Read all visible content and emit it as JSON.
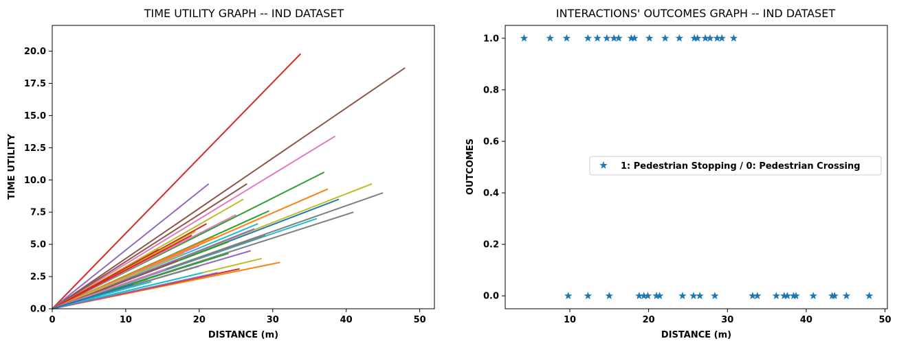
{
  "chart_data": [
    {
      "type": "line",
      "title": "TIME UTILITY GRAPH  -- IND DATASET",
      "xlabel": "DISTANCE (m)",
      "ylabel": "TIME UTILITY",
      "xlim": [
        0,
        52
      ],
      "ylim": [
        0,
        22
      ],
      "xticks": [
        0,
        10,
        20,
        30,
        40,
        50
      ],
      "yticks": [
        0.0,
        2.5,
        5.0,
        7.5,
        10.0,
        12.5,
        15.0,
        17.5,
        20.0
      ],
      "ytick_labels": [
        "0.0",
        "2.5",
        "5.0",
        "7.5",
        "10.0",
        "12.5",
        "15.0",
        "17.5",
        "20.0"
      ],
      "grid": false,
      "series": [
        {
          "color": "#d62728",
          "x": [
            0,
            33.8
          ],
          "y": [
            0,
            19.8
          ]
        },
        {
          "color": "#8c564b",
          "x": [
            0,
            48.0
          ],
          "y": [
            0,
            18.7
          ]
        },
        {
          "color": "#e377c2",
          "x": [
            0,
            38.5
          ],
          "y": [
            0,
            13.4
          ]
        },
        {
          "color": "#2ca02c",
          "x": [
            0,
            37.0
          ],
          "y": [
            0,
            10.6
          ]
        },
        {
          "color": "#9467bd",
          "x": [
            0,
            21.3
          ],
          "y": [
            0,
            9.7
          ]
        },
        {
          "color": "#8c564b",
          "x": [
            0,
            26.5
          ],
          "y": [
            0,
            9.7
          ]
        },
        {
          "color": "#bcbd22",
          "x": [
            0,
            43.5
          ],
          "y": [
            0,
            9.7
          ]
        },
        {
          "color": "#7f7f7f",
          "x": [
            0,
            45.0
          ],
          "y": [
            0,
            9.0
          ]
        },
        {
          "color": "#ff7f0e",
          "x": [
            0,
            37.5
          ],
          "y": [
            0,
            9.3
          ]
        },
        {
          "color": "#bcbd22",
          "x": [
            0,
            26.0
          ],
          "y": [
            0,
            8.5
          ]
        },
        {
          "color": "#1f77b4",
          "x": [
            0,
            39.0
          ],
          "y": [
            0,
            8.5
          ]
        },
        {
          "color": "#7f7f7f",
          "x": [
            0,
            41.0
          ],
          "y": [
            0,
            7.5
          ]
        },
        {
          "color": "#2ca02c",
          "x": [
            0,
            29.5
          ],
          "y": [
            0,
            7.6
          ]
        },
        {
          "color": "#e377c2",
          "x": [
            0,
            25.0
          ],
          "y": [
            0,
            7.3
          ]
        },
        {
          "color": "#17becf",
          "x": [
            0,
            36.0
          ],
          "y": [
            0,
            7.0
          ]
        },
        {
          "color": "#d62728",
          "x": [
            0,
            21.0
          ],
          "y": [
            0,
            6.6
          ]
        },
        {
          "color": "#17becf",
          "x": [
            0,
            28.0
          ],
          "y": [
            0,
            6.6
          ]
        },
        {
          "color": "#bcbd22",
          "x": [
            0,
            19.5
          ],
          "y": [
            0,
            6.0
          ]
        },
        {
          "color": "#9467bd",
          "x": [
            0,
            27.5
          ],
          "y": [
            0,
            6.2
          ]
        },
        {
          "color": "#d62728",
          "x": [
            0,
            19.0
          ],
          "y": [
            0,
            5.7
          ]
        },
        {
          "color": "#ff7f0e",
          "x": [
            0,
            22.0
          ],
          "y": [
            0,
            5.6
          ]
        },
        {
          "color": "#7f7f7f",
          "x": [
            0,
            29.0
          ],
          "y": [
            0,
            5.7
          ]
        },
        {
          "color": "#2ca02c",
          "x": [
            0,
            24.0
          ],
          "y": [
            0,
            5.2
          ]
        },
        {
          "color": "#e377c2",
          "x": [
            0,
            20.0
          ],
          "y": [
            0,
            4.9
          ]
        },
        {
          "color": "#d62728",
          "x": [
            0,
            14.5
          ],
          "y": [
            0,
            4.6
          ]
        },
        {
          "color": "#9467bd",
          "x": [
            0,
            27.0
          ],
          "y": [
            0,
            4.5
          ]
        },
        {
          "color": "#bcbd22",
          "x": [
            0,
            18.0
          ],
          "y": [
            0,
            4.3
          ]
        },
        {
          "color": "#2ca02c",
          "x": [
            0,
            24.0
          ],
          "y": [
            0,
            4.3
          ]
        },
        {
          "color": "#bcbd22",
          "x": [
            0,
            28.5
          ],
          "y": [
            0,
            3.9
          ]
        },
        {
          "color": "#8c564b",
          "x": [
            0,
            17.0
          ],
          "y": [
            0,
            3.7
          ]
        },
        {
          "color": "#ff7f0e",
          "x": [
            0,
            31.0
          ],
          "y": [
            0,
            3.6
          ]
        },
        {
          "color": "#7f7f7f",
          "x": [
            0,
            20.0
          ],
          "y": [
            0,
            3.3
          ]
        },
        {
          "color": "#e377c2",
          "x": [
            0,
            15.5
          ],
          "y": [
            0,
            3.1
          ]
        },
        {
          "color": "#d62728",
          "x": [
            0,
            25.5
          ],
          "y": [
            0,
            3.1
          ]
        },
        {
          "color": "#17becf",
          "x": [
            0,
            20.5
          ],
          "y": [
            0,
            2.8
          ]
        },
        {
          "color": "#9467bd",
          "x": [
            0,
            22.5
          ],
          "y": [
            0,
            2.8
          ]
        },
        {
          "color": "#2ca02c",
          "x": [
            0,
            13.0
          ],
          "y": [
            0,
            2.3
          ]
        },
        {
          "color": "#17becf",
          "x": [
            0,
            13.5
          ],
          "y": [
            0,
            2.1
          ]
        },
        {
          "color": "#1f77b4",
          "x": [
            0,
            11.0
          ],
          "y": [
            0,
            1.9
          ]
        }
      ]
    },
    {
      "type": "scatter",
      "title": "INTERACTIONS' OUTCOMES GRAPH  -- IND DATASET",
      "xlabel": "DISTANCE (m)",
      "ylabel": "OUTCOMES",
      "xlim": [
        1.8,
        50.3
      ],
      "ylim": [
        -0.05,
        1.05
      ],
      "xticks": [
        10,
        20,
        30,
        40,
        50
      ],
      "yticks": [
        0.0,
        0.2,
        0.4,
        0.6,
        0.8,
        1.0
      ],
      "ytick_labels": [
        "0.0",
        "0.2",
        "0.4",
        "0.6",
        "0.8",
        "1.0"
      ],
      "grid": false,
      "legend": "center-right",
      "series": [
        {
          "name": "1: Pedestrian Stopping / 0: Pedestrian Crossing",
          "color": "#1f77b4",
          "marker": "star",
          "x": [
            4.2,
            7.5,
            9.6,
            12.3,
            13.5,
            14.7,
            15.6,
            16.2,
            17.8,
            18.2,
            20.1,
            22.1,
            23.9,
            25.8,
            26.2,
            27.2,
            27.8,
            28.7,
            29.3,
            30.8,
            9.8,
            12.3,
            15.0,
            18.8,
            19.4,
            19.9,
            21.0,
            21.4,
            24.3,
            25.7,
            26.5,
            28.4,
            33.2,
            33.8,
            36.2,
            37.2,
            37.6,
            38.4,
            38.7,
            40.9,
            43.3,
            43.6,
            45.1,
            48.0
          ],
          "y": [
            1,
            1,
            1,
            1,
            1,
            1,
            1,
            1,
            1,
            1,
            1,
            1,
            1,
            1,
            1,
            1,
            1,
            1,
            1,
            1,
            0,
            0,
            0,
            0,
            0,
            0,
            0,
            0,
            0,
            0,
            0,
            0,
            0,
            0,
            0,
            0,
            0,
            0,
            0,
            0,
            0,
            0,
            0,
            0
          ]
        }
      ]
    }
  ]
}
